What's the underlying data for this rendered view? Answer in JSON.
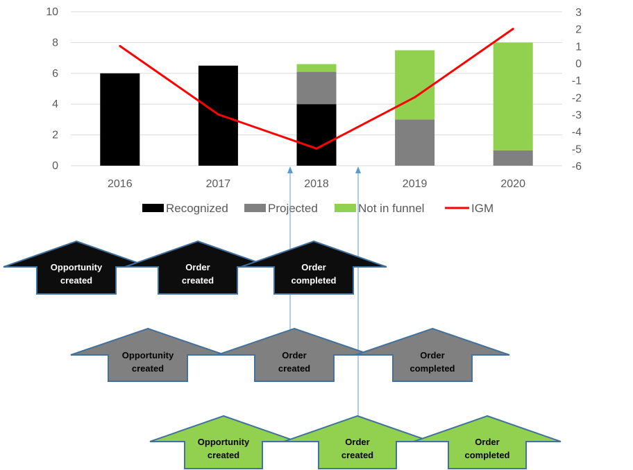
{
  "chart_data": {
    "type": "bar",
    "categories": [
      "2016",
      "2017",
      "2018",
      "2019",
      "2020"
    ],
    "series": [
      {
        "name": "Recognized",
        "kind": "stacked-bar",
        "axis": "left",
        "color": "#000000",
        "values": [
          6,
          6.5,
          4,
          0,
          0
        ]
      },
      {
        "name": "Projected",
        "kind": "stacked-bar",
        "axis": "left",
        "color": "#808080",
        "values": [
          0,
          0,
          2.1,
          3,
          1
        ]
      },
      {
        "name": "Not in funnel",
        "kind": "stacked-bar",
        "axis": "left",
        "color": "#92D050",
        "values": [
          0,
          0,
          0.5,
          4.5,
          7
        ]
      },
      {
        "name": "IGM",
        "kind": "line",
        "axis": "right",
        "color": "#FF0000",
        "values": [
          1,
          -3,
          -5,
          -2,
          2
        ]
      }
    ],
    "ylim": [
      0,
      10
    ],
    "yticks": [
      "0",
      "2",
      "4",
      "6",
      "8",
      "10"
    ],
    "y2lim": [
      -6,
      3
    ],
    "y2ticks": [
      "-6",
      "-5",
      "-4",
      "-3",
      "-2",
      "-1",
      "0",
      "1",
      "2",
      "3"
    ],
    "gridlines": true,
    "legend_position": "bottom"
  },
  "process_rows": [
    {
      "color": "black",
      "fill": "#0D0D0D",
      "text_color": "#FFFFFF",
      "steps": [
        {
          "label_line1": "Opportunity",
          "label_line2": "created"
        },
        {
          "label_line1": "Order",
          "label_line2": "created"
        },
        {
          "label_line1": "Order",
          "label_line2": "completed"
        }
      ]
    },
    {
      "color": "gray",
      "fill": "#808080",
      "text_color": "#000000",
      "steps": [
        {
          "label_line1": "Opportunity",
          "label_line2": "created"
        },
        {
          "label_line1": "Order",
          "label_line2": "created"
        },
        {
          "label_line1": "Order",
          "label_line2": "completed"
        }
      ]
    },
    {
      "color": "green",
      "fill": "#92D050",
      "text_color": "#000000",
      "steps": [
        {
          "label_line1": "Opportunity",
          "label_line2": "created"
        },
        {
          "label_line1": "Order",
          "label_line2": "created"
        },
        {
          "label_line1": "Order",
          "label_line2": "completed"
        }
      ]
    }
  ],
  "colors": {
    "arrow_outline": "#41719C",
    "connector": "#5B9BD5",
    "gridline": "#D9D9D9",
    "axis_text": "#595959"
  }
}
